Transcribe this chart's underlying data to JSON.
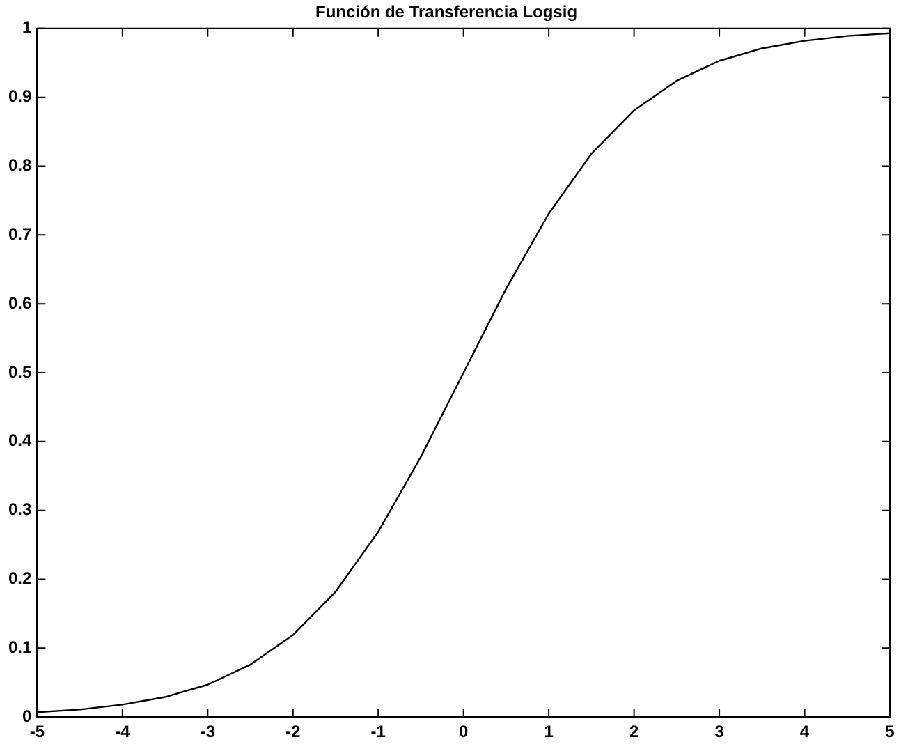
{
  "chart_data": {
    "type": "line",
    "title": "Función de Transferencia Logsig",
    "x": [
      -5,
      -4.5,
      -4,
      -3.5,
      -3,
      -2.5,
      -2,
      -1.5,
      -1,
      -0.5,
      0,
      0.5,
      1,
      1.5,
      2,
      2.5,
      3,
      3.5,
      4,
      4.5,
      5
    ],
    "values": [
      0.007,
      0.011,
      0.018,
      0.029,
      0.047,
      0.076,
      0.119,
      0.182,
      0.269,
      0.378,
      0.5,
      0.622,
      0.731,
      0.818,
      0.881,
      0.924,
      0.953,
      0.971,
      0.982,
      0.989,
      0.993
    ],
    "color": "#000000",
    "xlim": [
      -5,
      5
    ],
    "xticks": [
      -5,
      -4,
      -3,
      -2,
      -1,
      0,
      1,
      2,
      3,
      4,
      5
    ],
    "ylim": [
      0,
      1
    ],
    "yticks": [
      0,
      0.1,
      0.2,
      0.3,
      0.4,
      0.5,
      0.6,
      0.7,
      0.8,
      0.9,
      1
    ],
    "grid": false,
    "legend": false,
    "marker": "none",
    "line_style": "solid"
  }
}
